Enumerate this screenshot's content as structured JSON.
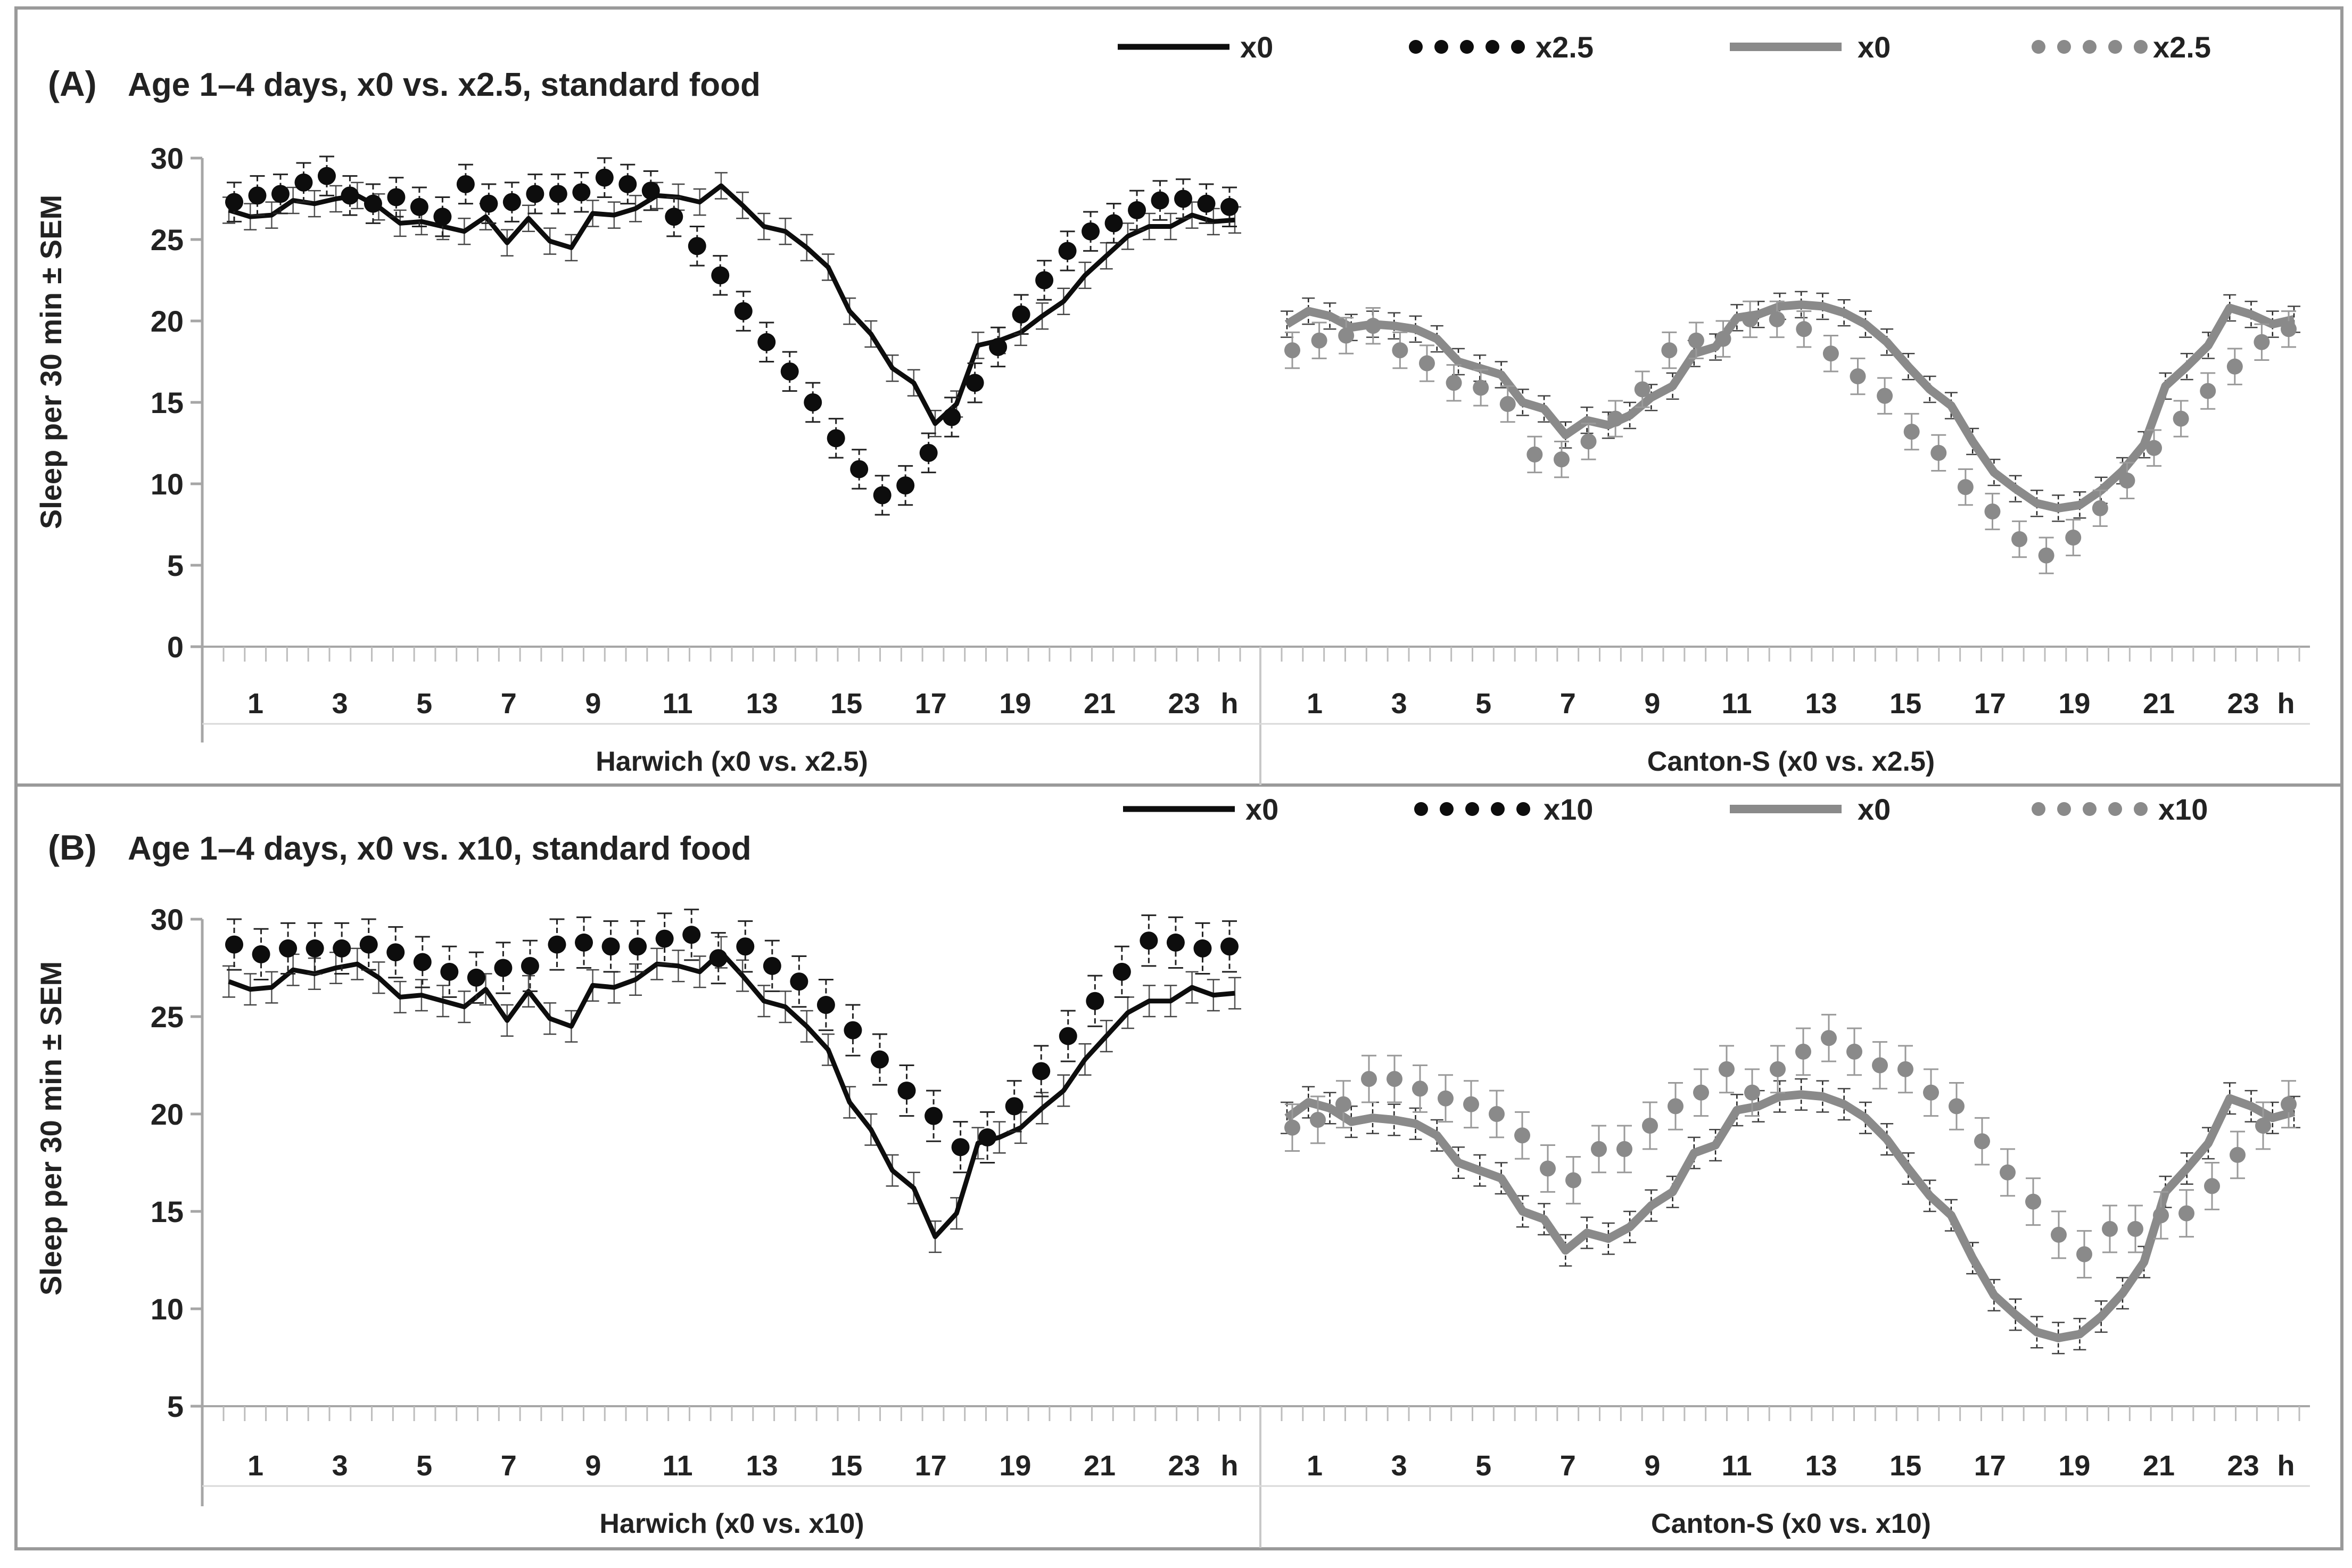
{
  "colors": {
    "harwich": "#0d0d0d",
    "canton": "#8a8a8a",
    "border": "#9a9a9a",
    "axis": "#a6a6a6"
  },
  "x_ticks": [
    "1",
    "3",
    "5",
    "7",
    "9",
    "11",
    "13",
    "15",
    "17",
    "19",
    "21",
    "23"
  ],
  "x_unit": "h",
  "ylabel": "Sleep per 30 min ± SEM",
  "chart_data": [
    {
      "type": "line",
      "panel_label": "(A)",
      "title": "Age 1–4 days, x0 vs. x2.5, standard food",
      "ylabel": "Sleep per 30 min ± SEM",
      "ylim": [
        0,
        30
      ],
      "yticks": [
        0,
        5,
        10,
        15,
        20,
        25,
        30
      ],
      "legend": [
        {
          "label": "x0",
          "style": "solid",
          "color": "#0d0d0d"
        },
        {
          "label": "x2.5",
          "style": "dots",
          "color": "#0d0d0d"
        },
        {
          "label": "x0",
          "style": "solid",
          "color": "#8a8a8a"
        },
        {
          "label": "x2.5",
          "style": "dots",
          "color": "#8a8a8a"
        }
      ],
      "groups": [
        {
          "label": "Harwich (x0 vs. x2.5)",
          "color": "#0d0d0d",
          "x0_err": 0.8,
          "treat_err": 1.2,
          "x0": [
            26.8,
            26.4,
            26.5,
            27.4,
            27.2,
            27.5,
            27.7,
            27.0,
            26.0,
            26.1,
            25.8,
            25.5,
            26.4,
            24.8,
            26.3,
            24.9,
            24.5,
            26.6,
            26.5,
            26.9,
            27.7,
            27.6,
            27.3,
            28.3,
            27.1,
            25.8,
            25.5,
            24.5,
            23.3,
            20.6,
            19.2,
            17.1,
            16.2,
            13.7,
            14.9,
            18.5,
            18.8,
            19.3,
            20.3,
            21.2,
            22.8,
            24.0,
            25.2,
            25.8,
            25.8,
            26.5,
            26.1,
            26.2
          ],
          "treat": [
            27.3,
            27.7,
            27.8,
            28.5,
            28.9,
            27.7,
            27.2,
            27.6,
            27.0,
            26.4,
            28.4,
            27.2,
            27.3,
            27.8,
            27.8,
            27.9,
            28.8,
            28.4,
            28.0,
            26.4,
            24.6,
            22.8,
            20.6,
            18.7,
            16.9,
            15.0,
            12.8,
            10.9,
            9.3,
            9.9,
            11.9,
            14.1,
            16.2,
            18.4,
            20.4,
            22.5,
            24.3,
            25.5,
            26.0,
            26.8,
            27.4,
            27.5,
            27.2,
            27.0
          ]
        },
        {
          "label": "Canton-S (x0 vs. x2.5)",
          "color": "#8a8a8a",
          "x0_err": 0.8,
          "treat_err": 1.1,
          "x0": [
            19.8,
            20.6,
            20.3,
            19.6,
            19.8,
            19.7,
            19.5,
            18.9,
            17.5,
            17.1,
            16.7,
            15.0,
            14.6,
            13.0,
            13.9,
            13.6,
            14.2,
            15.3,
            16.0,
            18.0,
            18.4,
            20.2,
            20.4,
            20.9,
            21.0,
            20.9,
            20.5,
            19.8,
            18.7,
            17.2,
            15.8,
            14.8,
            12.6,
            10.7,
            9.7,
            8.8,
            8.5,
            8.7,
            9.6,
            10.8,
            12.4,
            16.0,
            17.2,
            18.5,
            20.8,
            20.4,
            19.8,
            20.1
          ],
          "treat": [
            18.2,
            18.8,
            19.1,
            19.7,
            18.2,
            17.4,
            16.2,
            15.9,
            14.9,
            11.8,
            11.5,
            12.6,
            14.0,
            15.8,
            18.2,
            18.8,
            18.9,
            20.1,
            20.1,
            19.5,
            18.0,
            16.6,
            15.4,
            13.2,
            11.9,
            9.8,
            8.3,
            6.6,
            5.6,
            6.7,
            8.5,
            10.2,
            12.2,
            14.0,
            15.7,
            17.2,
            18.7,
            19.5
          ]
        }
      ]
    },
    {
      "type": "line",
      "panel_label": "(B)",
      "title": "Age 1–4 days, x0 vs. x10, standard food",
      "ylabel": "Sleep per 30 min ± SEM",
      "ylim": [
        5,
        30
      ],
      "yticks": [
        5,
        10,
        15,
        20,
        25,
        30
      ],
      "legend": [
        {
          "label": "x0",
          "style": "solid",
          "color": "#0d0d0d"
        },
        {
          "label": "x10",
          "style": "dots",
          "color": "#0d0d0d"
        },
        {
          "label": "x0",
          "style": "solid",
          "color": "#8a8a8a"
        },
        {
          "label": "x10",
          "style": "dots",
          "color": "#8a8a8a"
        }
      ],
      "groups": [
        {
          "label": "Harwich (x0 vs. x10)",
          "color": "#0d0d0d",
          "x0_err": 0.8,
          "treat_err": 1.3,
          "x0": [
            26.8,
            26.4,
            26.5,
            27.4,
            27.2,
            27.5,
            27.7,
            27.0,
            26.0,
            26.1,
            25.8,
            25.5,
            26.4,
            24.8,
            26.3,
            24.9,
            24.5,
            26.6,
            26.5,
            26.9,
            27.7,
            27.6,
            27.3,
            28.3,
            27.1,
            25.8,
            25.5,
            24.5,
            23.3,
            20.6,
            19.2,
            17.1,
            16.2,
            13.7,
            14.9,
            18.5,
            18.8,
            19.3,
            20.3,
            21.2,
            22.8,
            24.0,
            25.2,
            25.8,
            25.8,
            26.5,
            26.1,
            26.2
          ],
          "treat": [
            28.7,
            28.2,
            28.5,
            28.5,
            28.5,
            28.7,
            28.3,
            27.8,
            27.3,
            27.0,
            27.5,
            27.6,
            28.7,
            28.8,
            28.6,
            28.6,
            29.0,
            29.2,
            28.0,
            28.6,
            27.6,
            26.8,
            25.6,
            24.3,
            22.8,
            21.2,
            19.9,
            18.3,
            18.8,
            20.4,
            22.2,
            24.0,
            25.8,
            27.3,
            28.9,
            28.8,
            28.5,
            28.6
          ]
        },
        {
          "label": "Canton-S (x0 vs. x10)",
          "color": "#8a8a8a",
          "x0_err": 0.8,
          "treat_err": 1.2,
          "x0": [
            19.8,
            20.6,
            20.3,
            19.6,
            19.8,
            19.7,
            19.5,
            18.9,
            17.5,
            17.1,
            16.7,
            15.0,
            14.6,
            13.0,
            13.9,
            13.6,
            14.2,
            15.3,
            16.0,
            18.0,
            18.4,
            20.2,
            20.4,
            20.9,
            21.0,
            20.9,
            20.5,
            19.8,
            18.7,
            17.2,
            15.8,
            14.8,
            12.6,
            10.7,
            9.7,
            8.8,
            8.5,
            8.7,
            9.6,
            10.8,
            12.4,
            16.0,
            17.2,
            18.5,
            20.8,
            20.4,
            19.8,
            20.1
          ],
          "treat": [
            19.3,
            19.7,
            20.5,
            21.8,
            21.8,
            21.3,
            20.8,
            20.5,
            20.0,
            18.9,
            17.2,
            16.6,
            18.2,
            18.2,
            19.4,
            20.4,
            21.1,
            22.3,
            21.1,
            22.3,
            23.2,
            23.9,
            23.2,
            22.5,
            22.3,
            21.1,
            20.4,
            18.6,
            17.0,
            15.5,
            13.8,
            12.8,
            14.1,
            14.1,
            14.8,
            14.9,
            16.3,
            17.9,
            19.4,
            20.5
          ]
        }
      ]
    }
  ]
}
